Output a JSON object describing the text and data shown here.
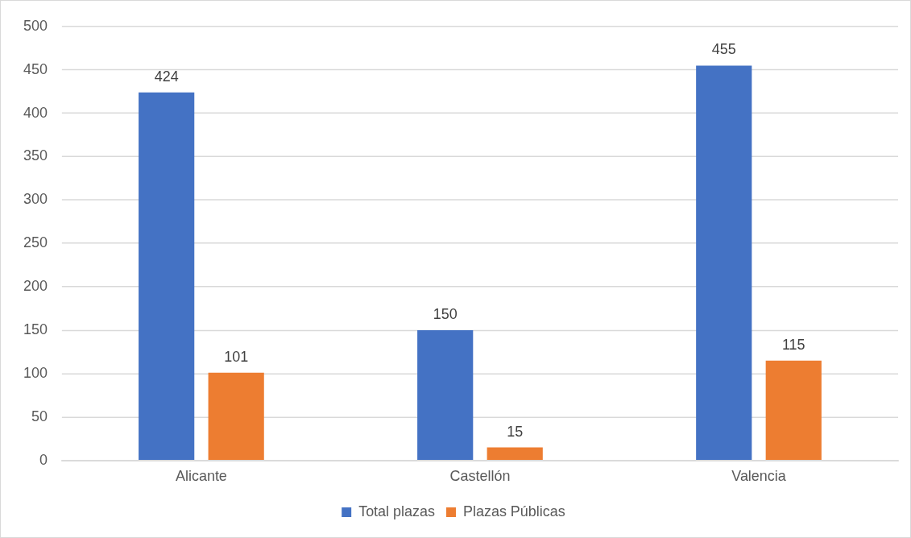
{
  "chart_data": {
    "type": "bar",
    "categories": [
      "Alicante",
      "Castellón",
      "Valencia"
    ],
    "series": [
      {
        "name": "Total plazas",
        "color": "#4472c4",
        "values": [
          424,
          150,
          455
        ]
      },
      {
        "name": "Plazas Públicas",
        "color": "#ed7d31",
        "values": [
          101,
          15,
          115
        ]
      }
    ],
    "ylim": [
      0,
      500
    ],
    "yticks": [
      0,
      50,
      100,
      150,
      200,
      250,
      300,
      350,
      400,
      450,
      500
    ],
    "grid": "y",
    "legend": "bottom",
    "data_labels": true
  }
}
